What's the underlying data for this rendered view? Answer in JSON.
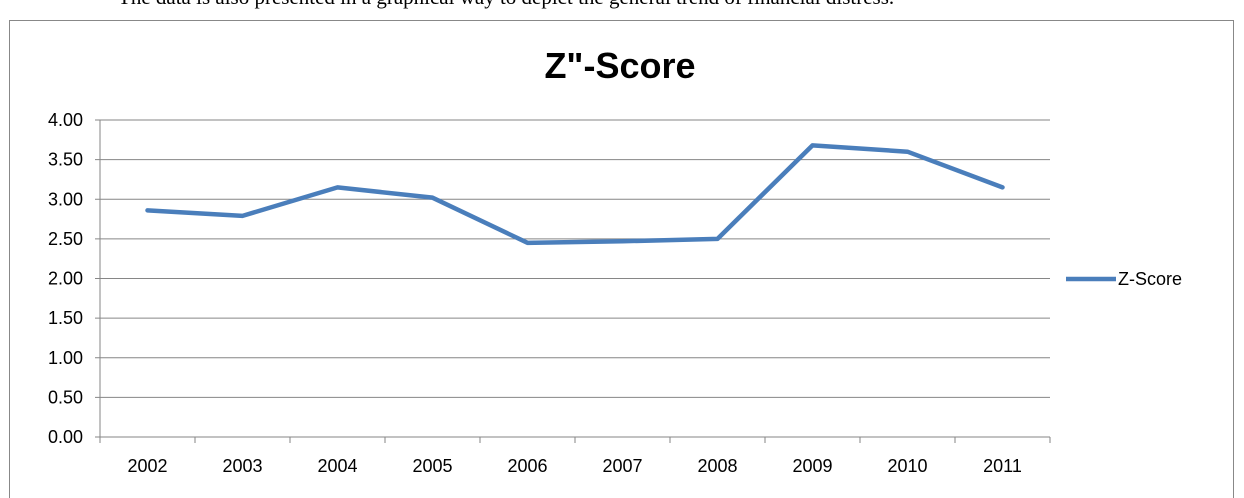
{
  "caption": "The data is also presented in a graphical way to depict the general trend of financial distress.",
  "chart_data": {
    "type": "line",
    "title": "Z\"-Score",
    "categories": [
      "2002",
      "2003",
      "2004",
      "2005",
      "2006",
      "2007",
      "2008",
      "2009",
      "2010",
      "2011"
    ],
    "series": [
      {
        "name": "Z-Score",
        "color": "#4a7ebb",
        "values": [
          2.86,
          2.79,
          3.15,
          3.02,
          2.45,
          2.47,
          2.5,
          3.68,
          3.6,
          3.15
        ]
      }
    ],
    "ylim": [
      0,
      4
    ],
    "yticks": [
      {
        "value": 0,
        "label": "0.00"
      },
      {
        "value": 0.5,
        "label": "0.50"
      },
      {
        "value": 1,
        "label": "1.00"
      },
      {
        "value": 1.5,
        "label": "1.50"
      },
      {
        "value": 2,
        "label": "2.00"
      },
      {
        "value": 2.5,
        "label": "2.50"
      },
      {
        "value": 3,
        "label": "3.00"
      },
      {
        "value": 3.5,
        "label": "3.50"
      },
      {
        "value": 4,
        "label": "4.00"
      }
    ],
    "grid": true,
    "legend": "right"
  }
}
